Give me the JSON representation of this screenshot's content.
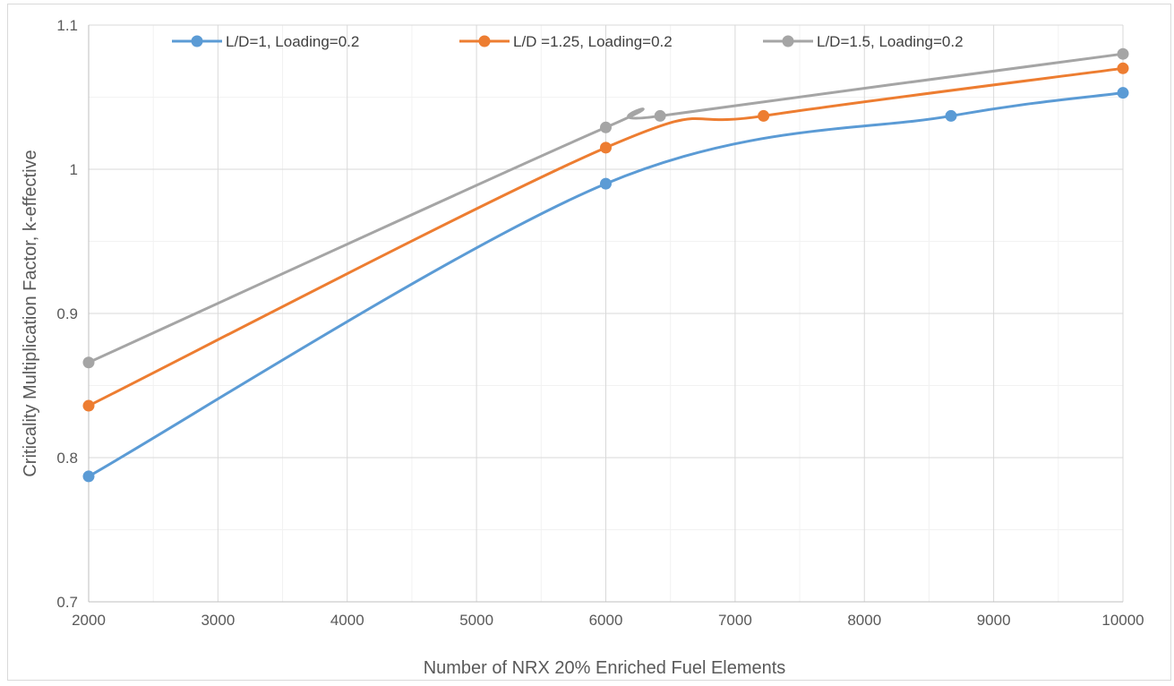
{
  "chart_data": {
    "type": "line",
    "title": "",
    "xlabel": "Number of NRX 20% Enriched Fuel Elements",
    "ylabel": "Criticality Multiplication Factor, k-effective",
    "xlim": [
      2000,
      10000
    ],
    "ylim": [
      0.7,
      1.1
    ],
    "x_ticks": [
      2000,
      3000,
      4000,
      5000,
      6000,
      7000,
      8000,
      9000,
      10000
    ],
    "y_ticks": [
      0.7,
      0.8,
      0.9,
      1.0,
      1.1
    ],
    "y_tick_labels": [
      "0.7",
      "0.8",
      "0.9",
      "1",
      "1.1"
    ],
    "grid": true,
    "smooth": true,
    "legend_position": "top",
    "series": [
      {
        "name": "L/D=1, Loading=0.2",
        "color": "#5b9bd5",
        "points": [
          [
            2000,
            0.787
          ],
          [
            6000,
            0.99
          ],
          [
            8670,
            1.037
          ],
          [
            10000,
            1.053
          ]
        ]
      },
      {
        "name": "L/D =1.25, Loading=0.2",
        "color": "#ed7d31",
        "points": [
          [
            2000,
            0.836
          ],
          [
            6000,
            1.015
          ],
          [
            7220,
            1.037
          ],
          [
            10000,
            1.07
          ]
        ]
      },
      {
        "name": "L/D=1.5, Loading=0.2",
        "color": "#a5a5a5",
        "points": [
          [
            2000,
            0.866
          ],
          [
            6000,
            1.029
          ],
          [
            6420,
            1.037
          ],
          [
            10000,
            1.08
          ]
        ]
      }
    ]
  }
}
